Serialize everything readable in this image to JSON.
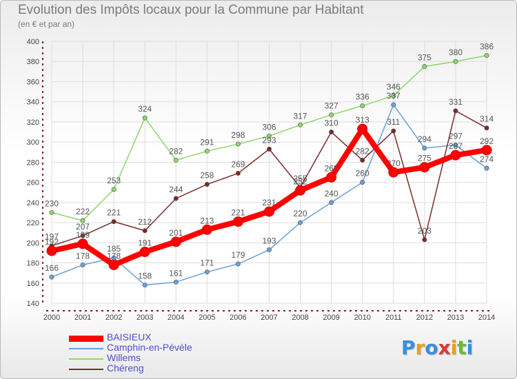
{
  "header": {
    "title": "Evolution des Impôts locaux pour la Commune par Habitant",
    "subtitle": "(en € et par an)"
  },
  "logo": {
    "text": "Proxiti"
  },
  "chart_data": {
    "type": "line",
    "title": "Evolution des Impôts locaux pour la Commune par Habitant",
    "subtitle": "(en € et par an)",
    "xlabel": "",
    "ylabel": "",
    "categories": [
      "2000",
      "2001",
      "2002",
      "2003",
      "2004",
      "2005",
      "2006",
      "2007",
      "2008",
      "2009",
      "2010",
      "2011",
      "2012",
      "2013",
      "2014"
    ],
    "ylim": [
      140,
      400
    ],
    "yticks": [
      140,
      160,
      180,
      200,
      220,
      240,
      260,
      280,
      300,
      320,
      340,
      360,
      380,
      400
    ],
    "grid": true,
    "legend_position": "bottom-left",
    "series": [
      {
        "name": "BAISIEUX",
        "color": "#ff0000",
        "values": [
          192,
          199,
          178,
          191,
          201,
          213,
          221,
          231,
          252,
          265,
          313,
          270,
          275,
          287,
          292
        ]
      },
      {
        "name": "Camphin-en-Pévèle",
        "color": "#6aa0d8",
        "values": [
          166,
          178,
          185,
          158,
          161,
          171,
          179,
          193,
          220,
          240,
          260,
          337,
          294,
          297,
          274
        ]
      },
      {
        "name": "Willems",
        "color": "#8ed66a",
        "values": [
          230,
          222,
          253,
          324,
          282,
          291,
          298,
          306,
          317,
          327,
          336,
          346,
          375,
          380,
          386
        ]
      },
      {
        "name": "Chéreng",
        "color": "#7a2a2a",
        "values": [
          197,
          207,
          221,
          212,
          244,
          258,
          269,
          293,
          255,
          310,
          282,
          311,
          203,
          331,
          314
        ]
      }
    ]
  }
}
